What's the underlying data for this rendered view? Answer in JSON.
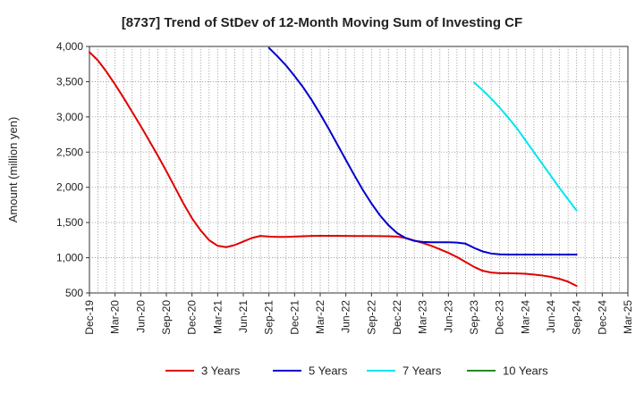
{
  "chart_data": {
    "type": "line",
    "title": "[8737]  Trend of StDev of 12-Month Moving Sum of Investing CF",
    "xlabel": "",
    "ylabel": "Amount (million yen)",
    "ylim": [
      500,
      4000
    ],
    "yticks": [
      500,
      1000,
      1500,
      2000,
      2500,
      3000,
      3500,
      4000
    ],
    "ytick_labels": [
      "500",
      "1,000",
      "1,500",
      "2,000",
      "2,500",
      "3,000",
      "3,500",
      "4,000"
    ],
    "xlim": [
      "2019-12",
      "2025-03"
    ],
    "xtick_labels": [
      "Dec-19",
      "Mar-20",
      "Jun-20",
      "Sep-20",
      "Dec-20",
      "Mar-21",
      "Jun-21",
      "Sep-21",
      "Dec-21",
      "Mar-22",
      "Jun-22",
      "Sep-22",
      "Dec-22",
      "Mar-23",
      "Jun-23",
      "Sep-23",
      "Dec-23",
      "Mar-24",
      "Jun-24",
      "Sep-24",
      "Dec-24",
      "Mar-25"
    ],
    "grid": true,
    "legend_position": "bottom",
    "series": [
      {
        "name": "3 Years",
        "color": "#e00000",
        "x": [
          "2019-12",
          "2020-01",
          "2020-02",
          "2020-03",
          "2020-04",
          "2020-05",
          "2020-06",
          "2020-07",
          "2020-08",
          "2020-09",
          "2020-10",
          "2020-11",
          "2020-12",
          "2021-01",
          "2021-02",
          "2021-03",
          "2021-04",
          "2021-05",
          "2021-06",
          "2021-07",
          "2021-08",
          "2021-09",
          "2021-10",
          "2021-11",
          "2021-12",
          "2022-01",
          "2022-02",
          "2022-03",
          "2022-04",
          "2022-05",
          "2022-06",
          "2022-07",
          "2022-08",
          "2022-09",
          "2022-10",
          "2022-11",
          "2022-12",
          "2023-01",
          "2023-02",
          "2023-03",
          "2023-04",
          "2023-05",
          "2023-06",
          "2023-07",
          "2023-08",
          "2023-09",
          "2023-10",
          "2023-11",
          "2023-12",
          "2024-01",
          "2024-02",
          "2024-03",
          "2024-04",
          "2024-05",
          "2024-06",
          "2024-07",
          "2024-08",
          "2024-09"
        ],
        "values": [
          3920,
          3800,
          3640,
          3460,
          3270,
          3070,
          2870,
          2660,
          2450,
          2230,
          2000,
          1770,
          1560,
          1390,
          1250,
          1170,
          1150,
          1180,
          1230,
          1280,
          1310,
          1300,
          1295,
          1295,
          1300,
          1305,
          1310,
          1312,
          1312,
          1311,
          1310,
          1309,
          1308,
          1308,
          1307,
          1305,
          1300,
          1280,
          1245,
          1210,
          1170,
          1120,
          1070,
          1010,
          940,
          870,
          815,
          790,
          780,
          780,
          778,
          772,
          762,
          748,
          728,
          700,
          660,
          600
        ]
      },
      {
        "name": "5 Years",
        "color": "#0000cc",
        "x": [
          "2021-09",
          "2021-10",
          "2021-11",
          "2021-12",
          "2022-01",
          "2022-02",
          "2022-03",
          "2022-04",
          "2022-05",
          "2022-06",
          "2022-07",
          "2022-08",
          "2022-09",
          "2022-10",
          "2022-11",
          "2022-12",
          "2023-01",
          "2023-02",
          "2023-03",
          "2023-04",
          "2023-05",
          "2023-06",
          "2023-07",
          "2023-08",
          "2023-09",
          "2023-10",
          "2023-11",
          "2023-12",
          "2024-01",
          "2024-02",
          "2024-03",
          "2024-04",
          "2024-05",
          "2024-06",
          "2024-07",
          "2024-08",
          "2024-09"
        ],
        "values": [
          3980,
          3860,
          3730,
          3580,
          3420,
          3240,
          3040,
          2830,
          2610,
          2390,
          2170,
          1960,
          1770,
          1600,
          1460,
          1350,
          1280,
          1240,
          1225,
          1220,
          1220,
          1220,
          1215,
          1200,
          1140,
          1090,
          1060,
          1048,
          1045,
          1045,
          1045,
          1045,
          1045,
          1045,
          1045,
          1045,
          1045
        ]
      },
      {
        "name": "7 Years",
        "color": "#00e5ee",
        "x": [
          "2023-09",
          "2023-10",
          "2023-11",
          "2023-12",
          "2024-01",
          "2024-02",
          "2024-03",
          "2024-04",
          "2024-05",
          "2024-06",
          "2024-07",
          "2024-08",
          "2024-09"
        ],
        "values": [
          3490,
          3380,
          3260,
          3130,
          2990,
          2840,
          2670,
          2500,
          2330,
          2160,
          1990,
          1830,
          1670
        ]
      },
      {
        "name": "10 Years",
        "color": "#228b22",
        "x": [],
        "values": []
      }
    ]
  }
}
